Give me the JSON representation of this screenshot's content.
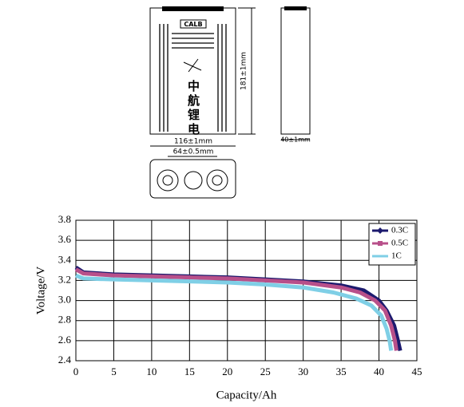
{
  "drawing": {
    "brand": "CALB",
    "brand_cn": "中航锂电",
    "height_dim": "181±1mm",
    "width_dim": "116±1mm",
    "terminal_dim": "64±0.5mm",
    "thickness_dim": "40±1mm"
  },
  "chart_data": {
    "type": "line",
    "xlabel": "Capacity/Ah",
    "ylabel": "Voltage/V",
    "xlim": [
      0,
      45
    ],
    "xticks": [
      0,
      5,
      10,
      15,
      20,
      25,
      30,
      35,
      40,
      45
    ],
    "ylim": [
      2.4,
      3.8
    ],
    "yticks": [
      2.4,
      2.6,
      2.8,
      {
        "value": 3,
        "label": "3.0"
      },
      3.2,
      3.4,
      3.6,
      3.8
    ],
    "grid": true,
    "legend": "upper right",
    "series": [
      {
        "name": "0.3C",
        "color": "#1c1a6e",
        "marker": "diamond",
        "x": [
          0,
          1,
          5,
          10,
          15,
          20,
          25,
          30,
          35,
          38,
          40,
          41,
          42,
          42.5,
          42.8
        ],
        "values": [
          3.33,
          3.28,
          3.26,
          3.25,
          3.24,
          3.23,
          3.21,
          3.19,
          3.15,
          3.1,
          3.0,
          2.9,
          2.75,
          2.6,
          2.5
        ]
      },
      {
        "name": "0.5C",
        "color": "#b8508a",
        "marker": "square",
        "x": [
          0,
          1,
          5,
          10,
          15,
          20,
          25,
          30,
          35,
          37.5,
          39.5,
          40.8,
          41.6,
          42.1,
          42.3
        ],
        "values": [
          3.31,
          3.27,
          3.25,
          3.24,
          3.23,
          3.22,
          3.2,
          3.18,
          3.13,
          3.08,
          3.0,
          2.9,
          2.75,
          2.6,
          2.5
        ]
      },
      {
        "name": "1C",
        "color": "#7fcfe6",
        "marker": "none",
        "x": [
          0,
          1,
          5,
          10,
          15,
          20,
          25,
          30,
          34,
          37,
          39,
          40.3,
          41,
          41.4,
          41.6
        ],
        "values": [
          3.25,
          3.22,
          3.21,
          3.2,
          3.19,
          3.18,
          3.16,
          3.13,
          3.08,
          3.02,
          2.95,
          2.85,
          2.72,
          2.6,
          2.5
        ]
      }
    ]
  }
}
